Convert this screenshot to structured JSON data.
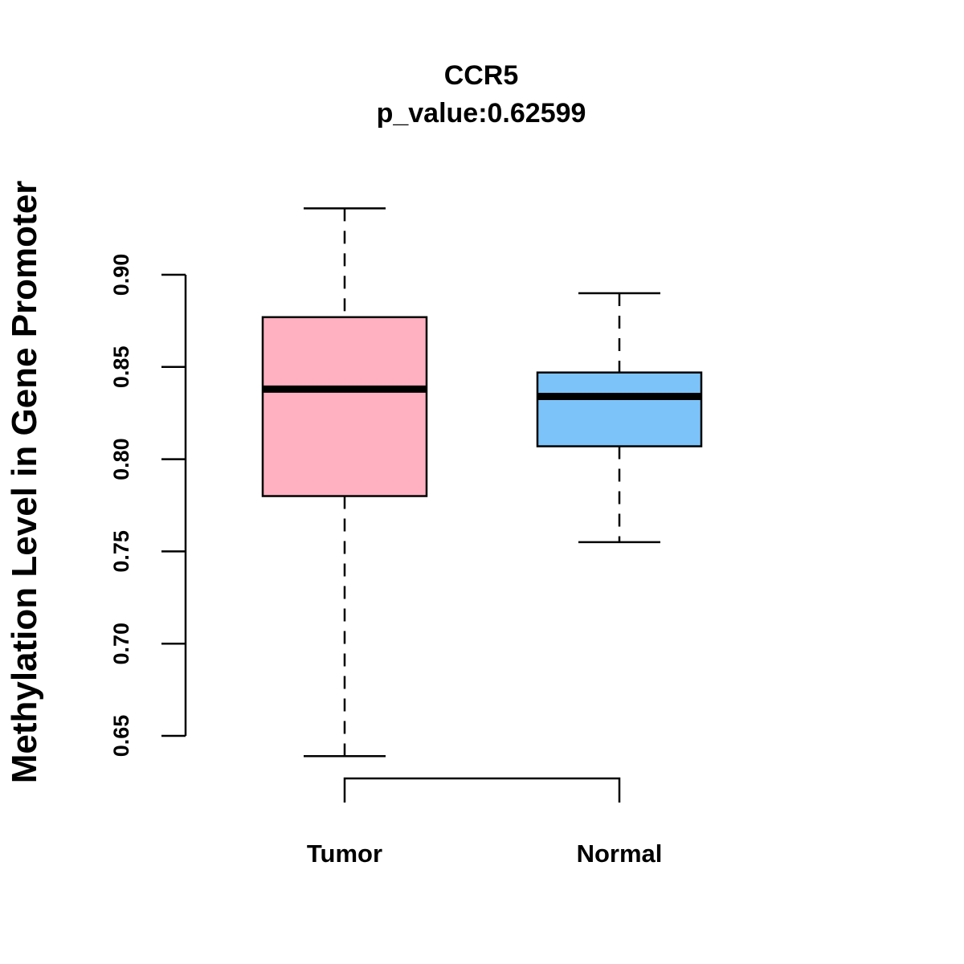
{
  "chart_data": {
    "type": "boxplot",
    "title": "CCR5",
    "subtitle": "p_value:0.62599",
    "xlabel": "",
    "ylabel": "Methylation Level in Gene Promoter",
    "ylim": [
      0.65,
      0.9
    ],
    "yticks": [
      0.65,
      0.7,
      0.75,
      0.8,
      0.85,
      0.9
    ],
    "ytick_labels": [
      "0.65",
      "0.70",
      "0.75",
      "0.80",
      "0.85",
      "0.90"
    ],
    "categories": [
      "Tumor",
      "Normal"
    ],
    "series": [
      {
        "name": "Tumor",
        "whisker_low": 0.639,
        "q1": 0.78,
        "median": 0.838,
        "q3": 0.877,
        "whisker_high": 0.936,
        "color": "#FFB1C1"
      },
      {
        "name": "Normal",
        "whisker_low": 0.755,
        "q1": 0.807,
        "median": 0.834,
        "q3": 0.847,
        "whisker_high": 0.89,
        "color": "#7CC3F9"
      }
    ],
    "bracket": true
  }
}
